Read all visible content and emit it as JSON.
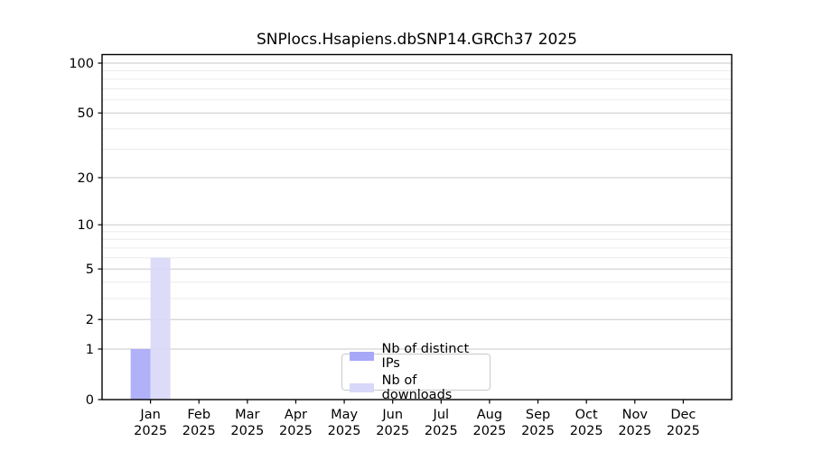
{
  "chart_data": {
    "type": "bar",
    "title": "SNPlocs.Hsapiens.dbSNP14.GRCh37 2025",
    "categories": [
      "Jan",
      "Feb",
      "Mar",
      "Apr",
      "May",
      "Jun",
      "Jul",
      "Aug",
      "Sep",
      "Oct",
      "Nov",
      "Dec"
    ],
    "x_year_label": "2025",
    "series": [
      {
        "name": "Nb of distinct IPs",
        "color": "#a8a8f8",
        "values": [
          1,
          0,
          0,
          0,
          0,
          0,
          0,
          0,
          0,
          0,
          0,
          0
        ]
      },
      {
        "name": "Nb of downloads",
        "color": "#d8d8f8",
        "values": [
          6,
          0,
          0,
          0,
          0,
          0,
          0,
          0,
          0,
          0,
          0,
          0
        ]
      }
    ],
    "y_axis": {
      "scale": "log1p",
      "ticks": [
        0,
        1,
        2,
        5,
        10,
        20,
        50,
        100
      ],
      "minor_gridlines": [
        3,
        4,
        6,
        7,
        8,
        9,
        30,
        40,
        60,
        70,
        80,
        90
      ],
      "max": 113
    },
    "legend": {
      "position": "bottom-center-inside",
      "entries": [
        "Nb of distinct IPs",
        "Nb of downloads"
      ]
    },
    "grid": true
  },
  "colors": {
    "axis": "#000000",
    "text": "#000000",
    "grid_major": "#c8c8c8",
    "grid_minor": "#ebebeb",
    "legend_border": "#c9c9c9",
    "background": "#ffffff"
  }
}
